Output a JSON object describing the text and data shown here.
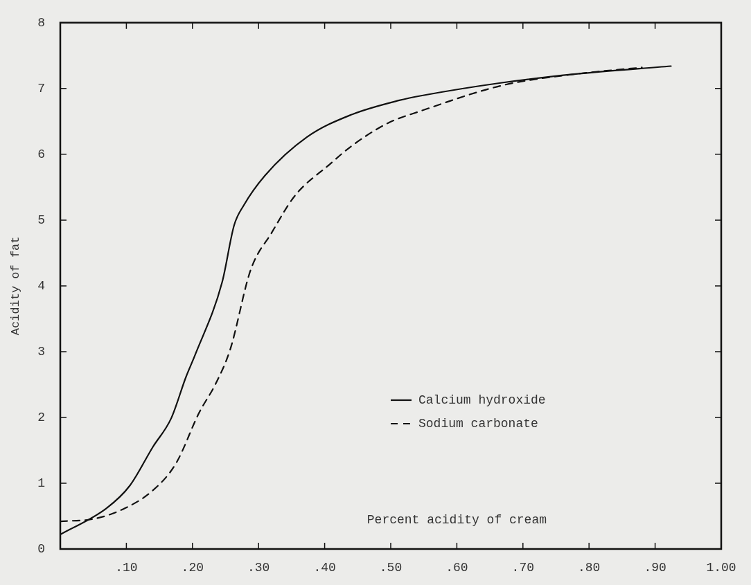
{
  "chart_data": {
    "type": "line",
    "xlabel": "Percent acidity of cream",
    "ylabel": "Acidity of fat",
    "xlim": [
      0,
      1
    ],
    "ylim": [
      0,
      8
    ],
    "xticks": [
      {
        "value": 0.1,
        "label": ".10"
      },
      {
        "value": 0.2,
        "label": ".20"
      },
      {
        "value": 0.3,
        "label": ".30"
      },
      {
        "value": 0.4,
        "label": ".40"
      },
      {
        "value": 0.5,
        "label": ".50"
      },
      {
        "value": 0.6,
        "label": ".60"
      },
      {
        "value": 0.7,
        "label": ".70"
      },
      {
        "value": 0.8,
        "label": ".80"
      },
      {
        "value": 0.9,
        "label": ".90"
      },
      {
        "value": 1,
        "label": "1.00"
      }
    ],
    "yticks": [
      0,
      1,
      2,
      3,
      4,
      5,
      6,
      7,
      8
    ],
    "grid": false,
    "legend": "bottom right",
    "marker": "none",
    "series": [
      {
        "name": "Calcium hydroxide",
        "color": "#111111",
        "line_style": "solid",
        "x": [
          0,
          0.07,
          0.105,
          0.14,
          0.168,
          0.19,
          0.204,
          0.245,
          0.263,
          0.278,
          0.31,
          0.373,
          0.44,
          0.513,
          0.546,
          0.67,
          0.78,
          0.924
        ],
        "values": [
          0.22,
          0.62,
          0.96,
          1.55,
          1.99,
          2.61,
          2.95,
          4.06,
          4.92,
          5.23,
          5.68,
          6.26,
          6.6,
          6.82,
          6.89,
          7.09,
          7.22,
          7.34
        ]
      },
      {
        "name": "Sodium carbonate",
        "color": "#111111",
        "line_style": "dashed",
        "x": [
          0,
          0.052,
          0.098,
          0.14,
          0.175,
          0.21,
          0.235,
          0.257,
          0.288,
          0.32,
          0.355,
          0.408,
          0.44,
          0.495,
          0.546,
          0.67,
          0.78,
          0.88
        ],
        "values": [
          0.42,
          0.46,
          0.62,
          0.89,
          1.3,
          2.07,
          2.51,
          3.03,
          4.24,
          4.81,
          5.37,
          5.85,
          6.12,
          6.47,
          6.66,
          7.05,
          7.22,
          7.32
        ]
      }
    ]
  }
}
